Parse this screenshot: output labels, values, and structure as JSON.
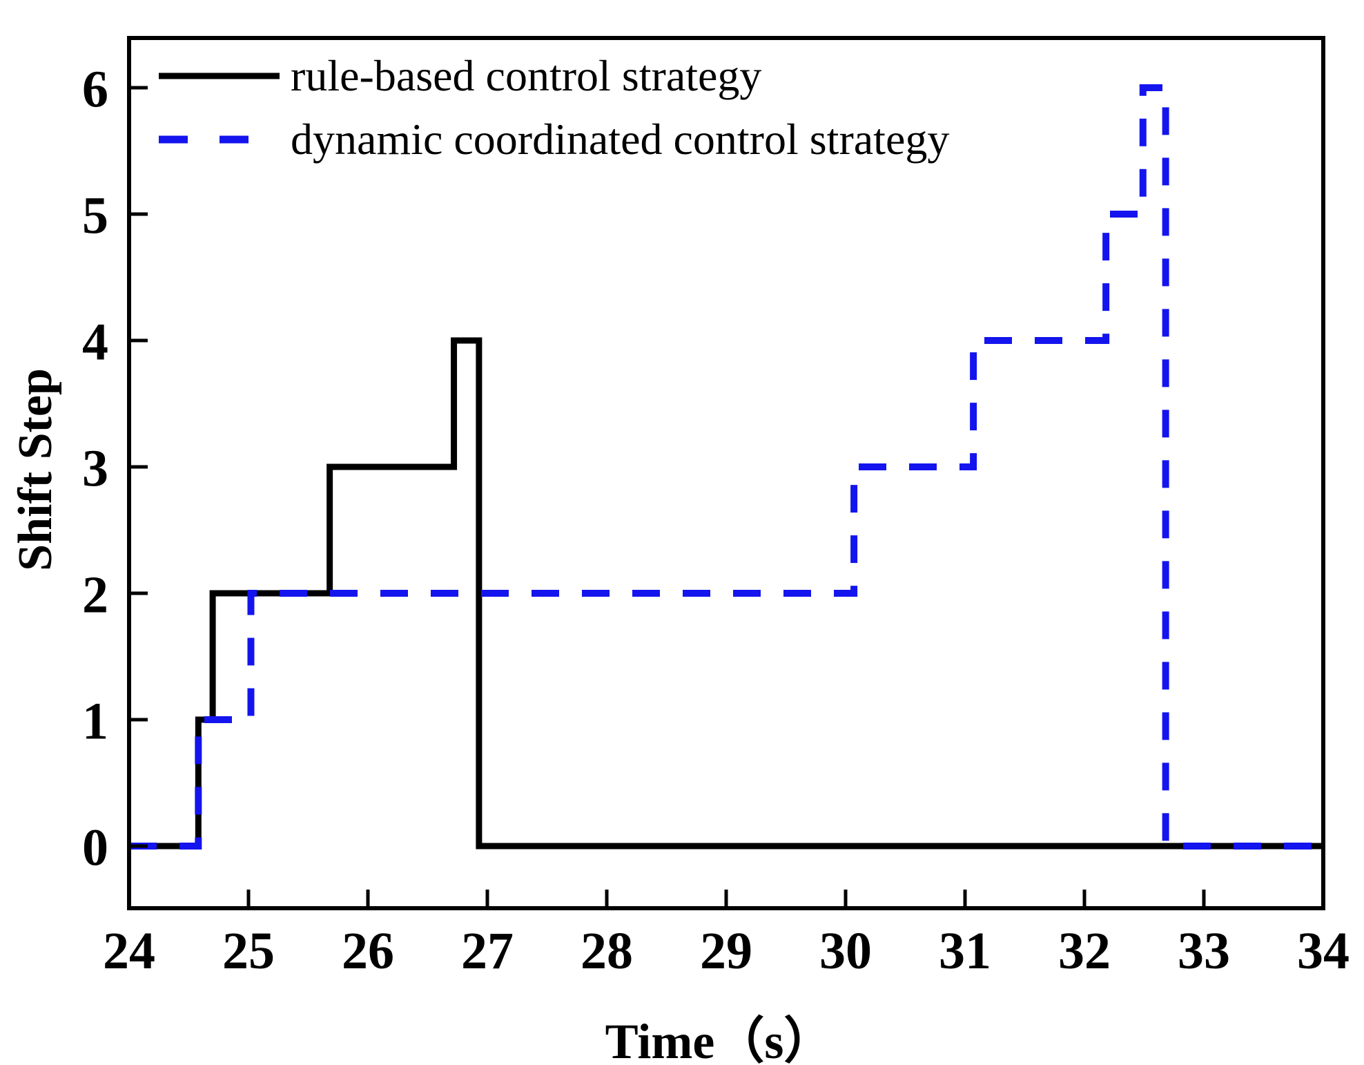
{
  "figure": {
    "background": "#ffffff",
    "axis_color": "#000000"
  },
  "axes": {
    "xlabel": "Time（s）",
    "ylabel": "Shift Step",
    "x_ticks": [
      24,
      25,
      26,
      27,
      28,
      29,
      30,
      31,
      32,
      33,
      34
    ],
    "y_ticks": [
      0,
      1,
      2,
      3,
      4,
      5,
      6
    ]
  },
  "legend": {
    "items": [
      {
        "label": "rule-based control strategy",
        "color": "#000000",
        "style": "solid"
      },
      {
        "label": "dynamic coordinated control strategy",
        "color": "#1414ee",
        "style": "dashed"
      }
    ]
  },
  "chart_data": {
    "type": "line",
    "subtype": "step",
    "title": "",
    "xlabel": "Time (s)",
    "ylabel": "Shift Step",
    "xlim": [
      24,
      34
    ],
    "ylim": [
      -0.5,
      6.4
    ],
    "grid": false,
    "legend_position": "upper-left",
    "series": [
      {
        "name": "rule-based control strategy",
        "color": "#000000",
        "line_style": "solid",
        "line_width": 9,
        "step_points": [
          [
            24.0,
            0
          ],
          [
            24.58,
            0
          ],
          [
            24.58,
            1
          ],
          [
            24.7,
            1
          ],
          [
            24.7,
            2
          ],
          [
            25.68,
            2
          ],
          [
            25.68,
            3
          ],
          [
            26.72,
            3
          ],
          [
            26.72,
            4
          ],
          [
            26.93,
            4
          ],
          [
            26.93,
            0
          ],
          [
            34.0,
            0
          ]
        ]
      },
      {
        "name": "dynamic coordinated control strategy",
        "color": "#1414ee",
        "line_style": "dashed",
        "line_width": 10,
        "step_points": [
          [
            24.0,
            0
          ],
          [
            24.58,
            0
          ],
          [
            24.58,
            1
          ],
          [
            25.02,
            1
          ],
          [
            25.02,
            2
          ],
          [
            30.07,
            2
          ],
          [
            30.07,
            3
          ],
          [
            31.07,
            3
          ],
          [
            31.07,
            4
          ],
          [
            32.18,
            4
          ],
          [
            32.18,
            5
          ],
          [
            32.49,
            5
          ],
          [
            32.49,
            6
          ],
          [
            32.68,
            6
          ],
          [
            32.68,
            0
          ],
          [
            34.0,
            0
          ]
        ]
      }
    ]
  }
}
